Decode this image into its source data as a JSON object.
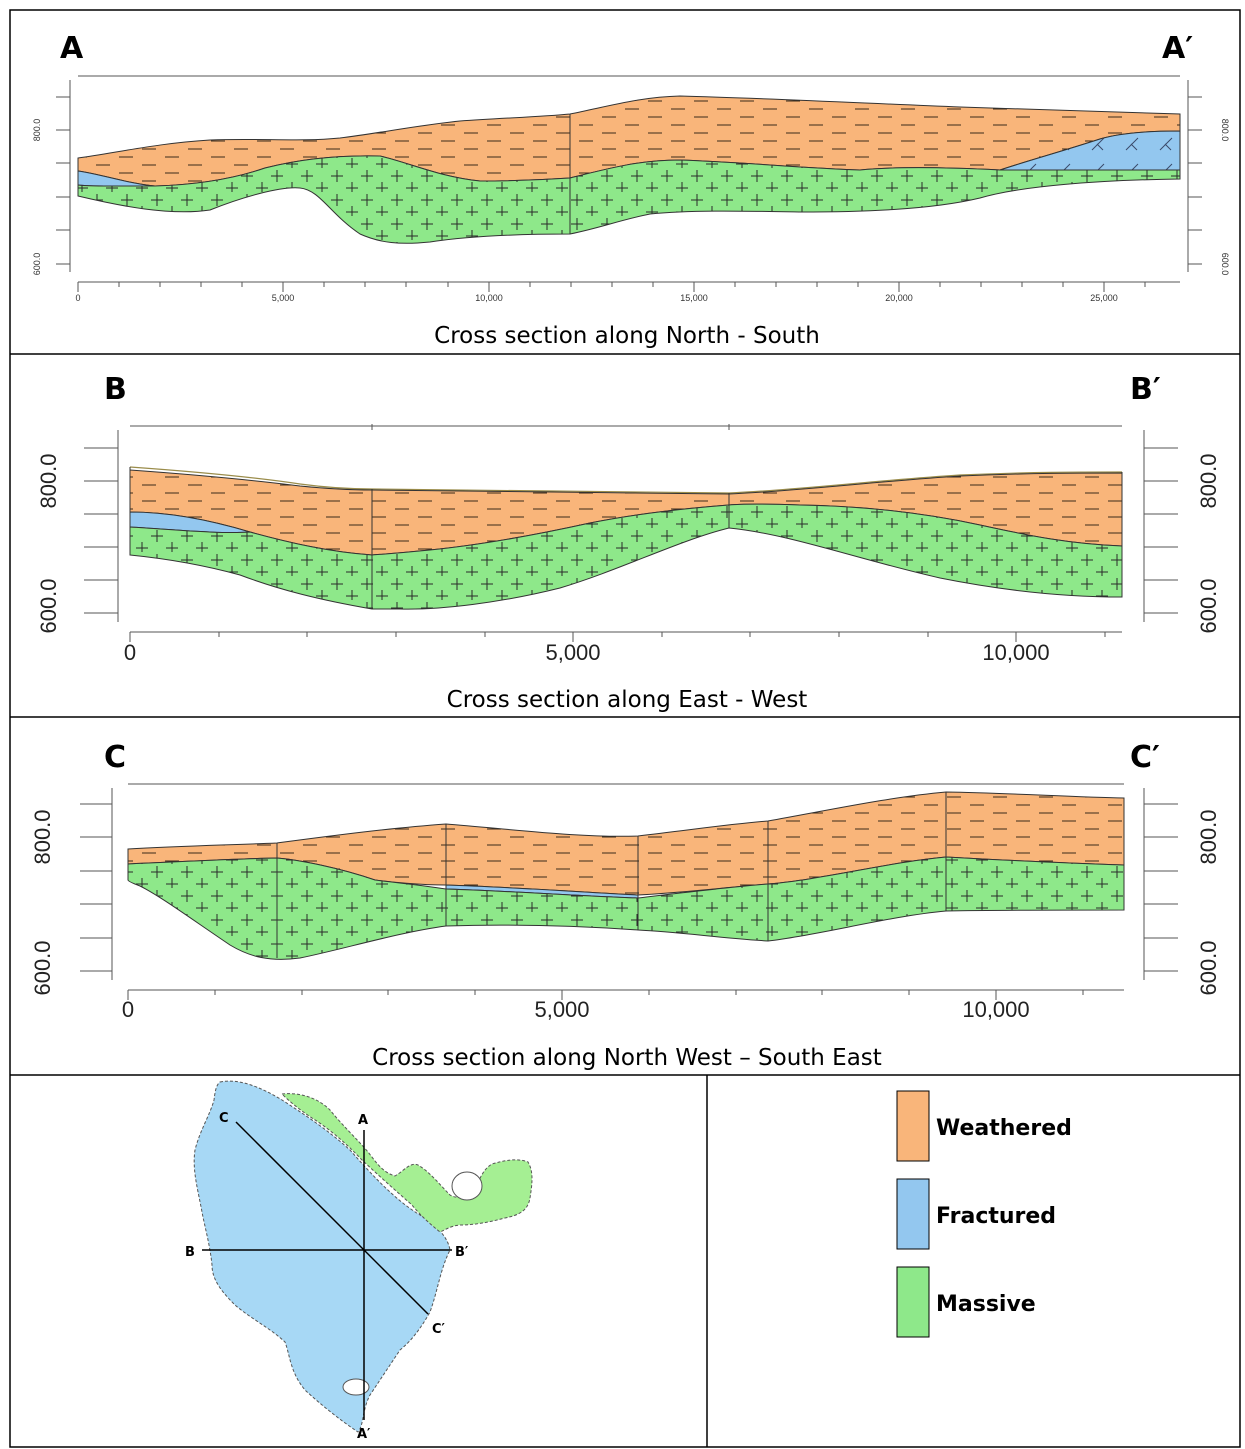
{
  "colors": {
    "weathered": "#f9b57a",
    "fractured": "#93c7ef",
    "massive": "#8ee88a",
    "map_fractured": "#a7d8f5",
    "map_massive": "#a5ef93"
  },
  "sections": [
    {
      "id": "A",
      "start_label": "A",
      "end_label": "A′",
      "caption": "Cross section along North - South",
      "depth_labels": [
        "800.0",
        "600.0"
      ],
      "distance_labels": [
        "0",
        "5,000",
        "10,000",
        "15,000",
        "20,000",
        "25,000"
      ]
    },
    {
      "id": "B",
      "start_label": "B",
      "end_label": "B′",
      "caption": "Cross section along East - West",
      "depth_labels": [
        "800.0",
        "600.0"
      ],
      "distance_labels": [
        "0",
        "5,000",
        "10,000"
      ]
    },
    {
      "id": "C",
      "start_label": "C",
      "end_label": "C′",
      "caption": "Cross section along North West – South East",
      "depth_labels": [
        "800.0",
        "600.0"
      ],
      "distance_labels": [
        "0",
        "5,000",
        "10,000"
      ]
    }
  ],
  "map": {
    "labels": {
      "a": "A",
      "a_prime": "A′",
      "b": "B",
      "b_prime": "B′",
      "c": "C",
      "c_prime": "C′"
    }
  },
  "legend": [
    {
      "label": "Weathered",
      "color_key": "weathered"
    },
    {
      "label": "Fractured",
      "color_key": "fractured"
    },
    {
      "label": "Massive",
      "color_key": "massive"
    }
  ]
}
